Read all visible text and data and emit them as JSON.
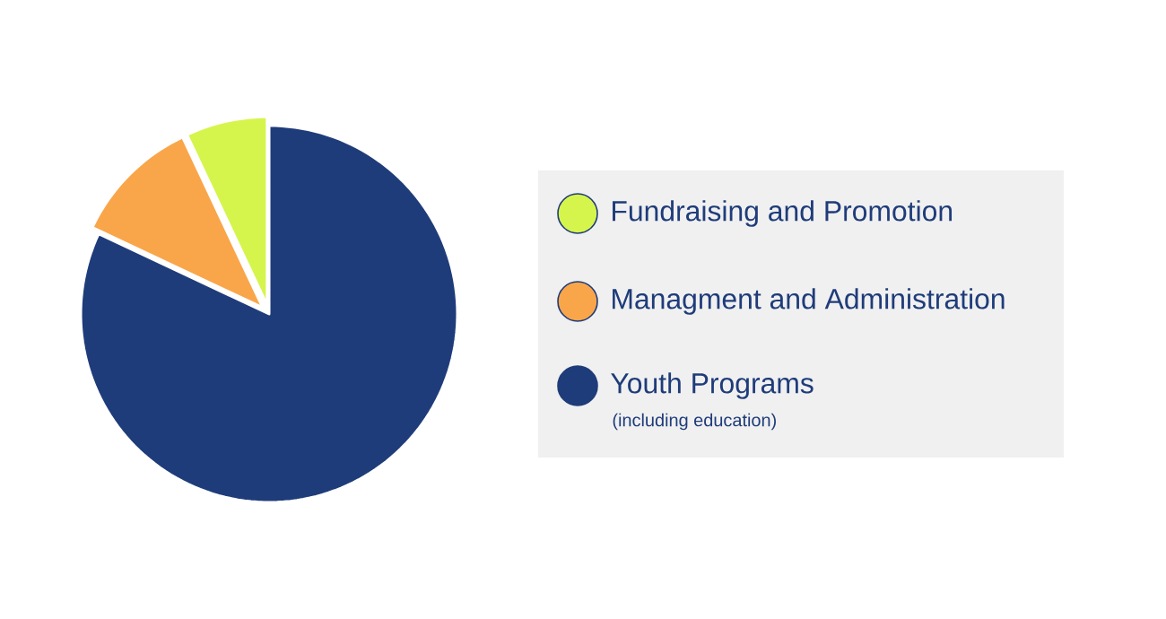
{
  "chart_data": {
    "type": "pie",
    "categories": [
      "Fundraising and Promotion",
      "Managment and Administration",
      "Youth Programs"
    ],
    "values": [
      7,
      11,
      82
    ],
    "colors": [
      "#d6f54c",
      "#f9a64a",
      "#1f3c7a"
    ],
    "legend": "right",
    "annotations": [
      "(including education)"
    ]
  }
}
